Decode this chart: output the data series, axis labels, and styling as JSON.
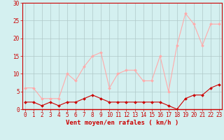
{
  "x": [
    0,
    1,
    2,
    3,
    4,
    5,
    6,
    7,
    8,
    9,
    10,
    11,
    12,
    13,
    14,
    15,
    16,
    17,
    18,
    19,
    20,
    21,
    22,
    23
  ],
  "wind_mean": [
    2,
    2,
    1,
    2,
    1,
    2,
    2,
    3,
    4,
    3,
    2,
    2,
    2,
    2,
    2,
    2,
    2,
    1,
    0,
    3,
    4,
    4,
    6,
    7
  ],
  "wind_gust": [
    6,
    6,
    3,
    3,
    3,
    10,
    8,
    12,
    15,
    16,
    6,
    10,
    11,
    11,
    8,
    8,
    15,
    5,
    18,
    27,
    24,
    18,
    24,
    24
  ],
  "mean_color": "#cc0000",
  "gust_color": "#ffaaaa",
  "bg_color": "#d4f0f0",
  "grid_color": "#b0c8c8",
  "xlabel": "Vent moyen/en rafales ( km/h )",
  "ylim": [
    0,
    30
  ],
  "yticks": [
    0,
    5,
    10,
    15,
    20,
    25,
    30
  ],
  "xticks": [
    0,
    1,
    2,
    3,
    4,
    5,
    6,
    7,
    8,
    9,
    10,
    11,
    12,
    13,
    14,
    15,
    16,
    17,
    18,
    19,
    20,
    21,
    22,
    23
  ],
  "tick_fontsize": 5.5,
  "label_fontsize": 6.5
}
